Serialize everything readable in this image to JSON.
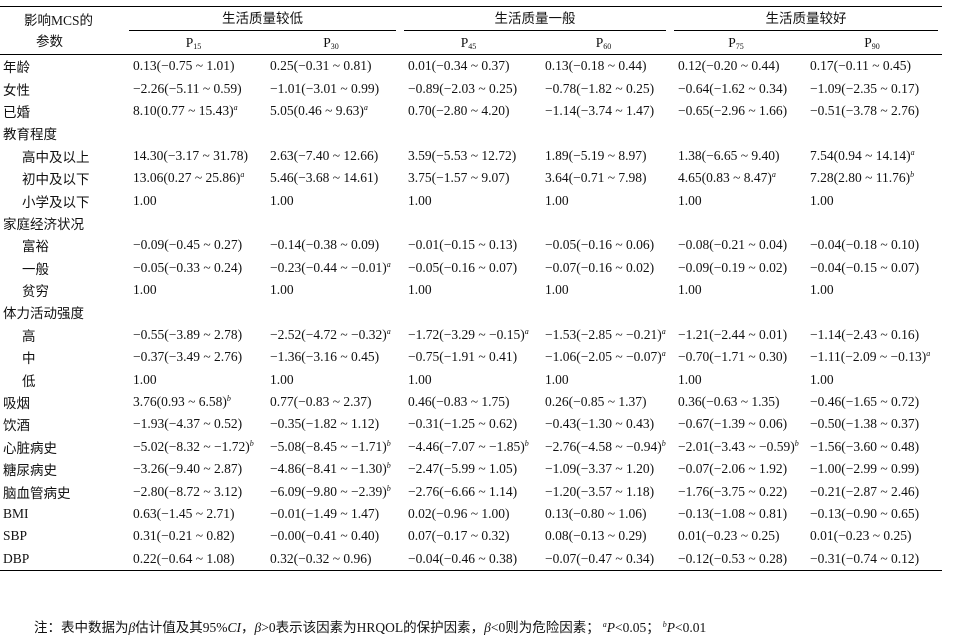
{
  "table": {
    "corner": [
      "影响MCS的",
      "参数"
    ],
    "groups": [
      "生活质量较低",
      "生活质量一般",
      "生活质量较好"
    ],
    "subheaders": [
      {
        "letter": "P",
        "sub": "15"
      },
      {
        "letter": "P",
        "sub": "30"
      },
      {
        "letter": "P",
        "sub": "45"
      },
      {
        "letter": "P",
        "sub": "60"
      },
      {
        "letter": "P",
        "sub": "75"
      },
      {
        "letter": "P",
        "sub": "90"
      }
    ],
    "rows": [
      {
        "label": "年龄",
        "cells": [
          "0.13(−0.75 ~ 1.01)",
          "0.25(−0.31 ~ 0.81)",
          "0.01(−0.34 ~ 0.37)",
          "0.13(−0.18 ~ 0.44)",
          "0.12(−0.20 ~ 0.44)",
          "0.17(−0.11 ~ 0.45)"
        ]
      },
      {
        "label": "女性",
        "cells": [
          "−2.26(−5.11 ~ 0.59)",
          "−1.01(−3.01 ~ 0.99)",
          "−0.89(−2.03 ~ 0.25)",
          "−0.78(−1.82 ~ 0.25)",
          "−0.64(−1.62 ~ 0.34)",
          "−1.09(−2.35 ~ 0.17)"
        ]
      },
      {
        "label": "已婚",
        "cells": [
          {
            "text": "8.10(0.77 ~ 15.43)",
            "sup": "a"
          },
          {
            "text": "5.05(0.46 ~ 9.63)",
            "sup": "a"
          },
          "0.70(−2.80 ~ 4.20)",
          "−1.14(−3.74 ~ 1.47)",
          "−0.65(−2.96 ~ 1.66)",
          "−0.51(−3.78 ~ 2.76)"
        ]
      },
      {
        "label": "教育程度",
        "items": [
          {
            "label": "高中及以上",
            "cells": [
              "14.30(−3.17 ~ 31.78)",
              "2.63(−7.40 ~ 12.66)",
              "3.59(−5.53 ~ 12.72)",
              "1.89(−5.19 ~ 8.97)",
              "1.38(−6.65 ~ 9.40)",
              {
                "text": "7.54(0.94 ~ 14.14)",
                "sup": "a"
              }
            ]
          },
          {
            "label": "初中及以下",
            "cells": [
              {
                "text": "13.06(0.27 ~ 25.86)",
                "sup": "a"
              },
              "5.46(−3.68 ~ 14.61)",
              "3.75(−1.57 ~ 9.07)",
              "3.64(−0.71 ~ 7.98)",
              {
                "text": "4.65(0.83 ~ 8.47)",
                "sup": "a"
              },
              {
                "text": "7.28(2.80 ~ 11.76)",
                "sup": "b"
              }
            ]
          },
          {
            "label": "小学及以下",
            "cells": [
              "1.00",
              "1.00",
              "1.00",
              "1.00",
              "1.00",
              "1.00"
            ]
          }
        ]
      },
      {
        "label": "家庭经济状况",
        "items": [
          {
            "label": "富裕",
            "cells": [
              "−0.09(−0.45 ~ 0.27)",
              "−0.14(−0.38 ~ 0.09)",
              "−0.01(−0.15 ~ 0.13)",
              "−0.05(−0.16 ~ 0.06)",
              "−0.08(−0.21 ~ 0.04)",
              "−0.04(−0.18 ~ 0.10)"
            ]
          },
          {
            "label": "一般",
            "cells": [
              "−0.05(−0.33 ~ 0.24)",
              {
                "text": "−0.23(−0.44 ~ −0.01)",
                "sup": "a"
              },
              "−0.05(−0.16 ~ 0.07)",
              "−0.07(−0.16 ~ 0.02)",
              "−0.09(−0.19 ~ 0.02)",
              "−0.04(−0.15 ~ 0.07)"
            ]
          },
          {
            "label": "贫穷",
            "cells": [
              "1.00",
              "1.00",
              "1.00",
              "1.00",
              "1.00",
              "1.00"
            ]
          }
        ]
      },
      {
        "label": "体力活动强度",
        "items": [
          {
            "label": "高",
            "cells": [
              "−0.55(−3.89 ~ 2.78)",
              {
                "text": "−2.52(−4.72 ~ −0.32)",
                "sup": "a"
              },
              {
                "text": "−1.72(−3.29 ~ −0.15)",
                "sup": "a"
              },
              {
                "text": "−1.53(−2.85 ~ −0.21)",
                "sup": "a"
              },
              "−1.21(−2.44 ~ 0.01)",
              "−1.14(−2.43 ~ 0.16)"
            ]
          },
          {
            "label": "中",
            "cells": [
              "−0.37(−3.49 ~ 2.76)",
              "−1.36(−3.16 ~ 0.45)",
              "−0.75(−1.91 ~ 0.41)",
              {
                "text": "−1.06(−2.05 ~ −0.07)",
                "sup": "a"
              },
              "−0.70(−1.71 ~ 0.30)",
              {
                "text": "−1.11(−2.09 ~ −0.13)",
                "sup": "a"
              }
            ]
          },
          {
            "label": "低",
            "cells": [
              "1.00",
              "1.00",
              "1.00",
              "1.00",
              "1.00",
              "1.00"
            ]
          }
        ]
      },
      {
        "label": "吸烟",
        "cells": [
          {
            "text": "3.76(0.93 ~ 6.58)",
            "sup": "b"
          },
          "0.77(−0.83 ~ 2.37)",
          "0.46(−0.83 ~ 1.75)",
          "0.26(−0.85 ~ 1.37)",
          "0.36(−0.63 ~ 1.35)",
          "−0.46(−1.65 ~ 0.72)"
        ]
      },
      {
        "label": "饮酒",
        "cells": [
          "−1.93(−4.37 ~ 0.52)",
          "−0.35(−1.82 ~ 1.12)",
          "−0.31(−1.25 ~ 0.62)",
          "−0.43(−1.30 ~ 0.43)",
          "−0.67(−1.39 ~ 0.06)",
          "−0.50(−1.38 ~ 0.37)"
        ]
      },
      {
        "label": "心脏病史",
        "cells": [
          {
            "text": "−5.02(−8.32 ~ −1.72)",
            "sup": "b"
          },
          {
            "text": "−5.08(−8.45 ~ −1.71)",
            "sup": "b"
          },
          {
            "text": "−4.46(−7.07 ~ −1.85)",
            "sup": "b"
          },
          {
            "text": "−2.76(−4.58 ~ −0.94)",
            "sup": "b"
          },
          {
            "text": "−2.01(−3.43 ~ −0.59)",
            "sup": "b"
          },
          "−1.56(−3.60 ~ 0.48)"
        ]
      },
      {
        "label": "糖尿病史",
        "cells": [
          "−3.26(−9.40 ~ 2.87)",
          {
            "text": "−4.86(−8.41 ~ −1.30)",
            "sup": "b"
          },
          "−2.47(−5.99 ~ 1.05)",
          "−1.09(−3.37 ~ 1.20)",
          "−0.07(−2.06 ~ 1.92)",
          "−1.00(−2.99 ~ 0.99)"
        ]
      },
      {
        "label": "脑血管病史",
        "cells": [
          "−2.80(−8.72 ~ 3.12)",
          {
            "text": "−6.09(−9.80 ~ −2.39)",
            "sup": "b"
          },
          "−2.76(−6.66 ~ 1.14)",
          "−1.20(−3.57 ~ 1.18)",
          "−1.76(−3.75 ~ 0.22)",
          "−0.21(−2.87 ~ 2.46)"
        ]
      },
      {
        "label": "BMI",
        "cells": [
          "0.63(−1.45 ~ 2.71)",
          "−0.01(−1.49 ~ 1.47)",
          "0.02(−0.96 ~ 1.00)",
          "0.13(−0.80 ~ 1.06)",
          "−0.13(−1.08 ~ 0.81)",
          "−0.13(−0.90 ~ 0.65)"
        ]
      },
      {
        "label": "SBP",
        "cells": [
          "0.31(−0.21 ~ 0.82)",
          "−0.00(−0.41 ~ 0.40)",
          "0.07(−0.17 ~ 0.32)",
          "0.08(−0.13 ~ 0.29)",
          "0.01(−0.23 ~ 0.25)",
          "0.01(−0.23 ~ 0.25)"
        ]
      },
      {
        "label": "DBP",
        "cells": [
          "0.22(−0.64 ~ 1.08)",
          "0.32(−0.32 ~ 0.96)",
          "−0.04(−0.46 ~ 0.38)",
          "−0.07(−0.47 ~ 0.34)",
          "−0.12(−0.53 ~ 0.28)",
          "−0.31(−0.74 ~ 0.12)"
        ]
      }
    ]
  },
  "footnote": [
    "注：表中数据为",
    "β",
    "估计值及其95%",
    "CI",
    "，",
    "β",
    ">0表示该因素为HRQOL的保护因素，",
    "β",
    "<0则为危险因素；",
    "a",
    "P",
    "<0.05；",
    "b",
    "P",
    "<0.01"
  ]
}
